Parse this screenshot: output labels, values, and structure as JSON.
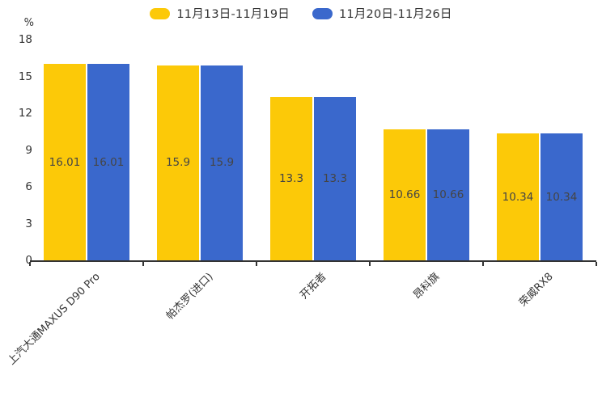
{
  "chart_data": {
    "type": "bar",
    "title": "",
    "ylabel": "%",
    "xlabel": "",
    "ylim": [
      0,
      18
    ],
    "yticks": [
      0,
      3,
      6,
      9,
      12,
      15,
      18
    ],
    "grid": false,
    "legend_position": "top",
    "data_labels_inside_bars": true,
    "x_label_rotation_deg": 45,
    "categories": [
      "上汽大通MAXUS D90 Pro",
      "帕杰罗(进口)",
      "开拓者",
      "昂科旗",
      "荣威RX8"
    ],
    "series": [
      {
        "name": "11月13日-11月19日",
        "color": "#FCC908",
        "values": [
          16.01,
          15.9,
          13.3,
          10.66,
          10.34
        ]
      },
      {
        "name": "11月20日-11月26日",
        "color": "#3A68CC",
        "values": [
          16.01,
          15.9,
          13.3,
          10.66,
          10.34
        ]
      }
    ],
    "axis_color": "#333333",
    "bar_label_color": "#454545"
  }
}
